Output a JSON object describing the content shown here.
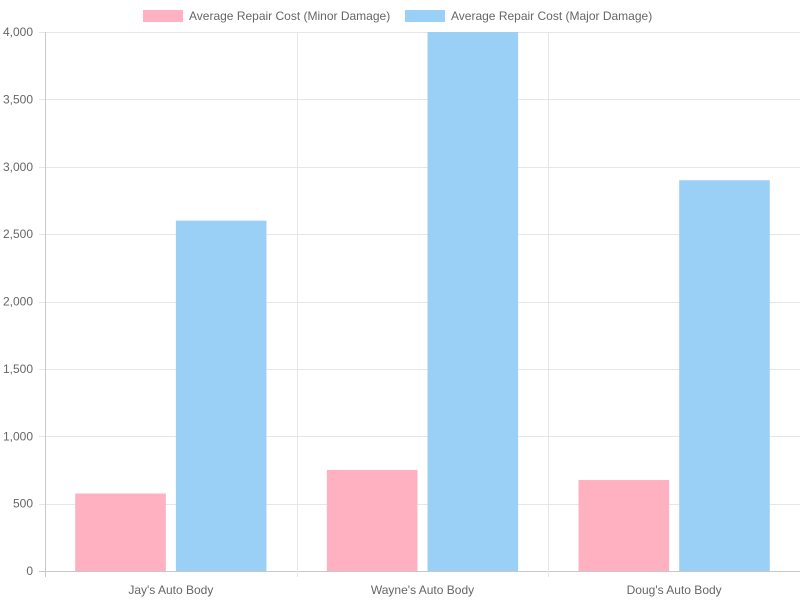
{
  "chart_data": {
    "type": "bar",
    "categories": [
      "Jay's Auto Body",
      "Wayne's Auto Body",
      "Doug's Auto Body"
    ],
    "series": [
      {
        "name": "Average Repair Cost (Minor Damage)",
        "values": [
          575,
          750,
          675
        ],
        "color": "#ff6384",
        "fill": "rgba(255,99,132,0.5)"
      },
      {
        "name": "Average Repair Cost (Major Damage)",
        "values": [
          2600,
          4000,
          2900
        ],
        "color": "#36a2eb",
        "fill": "rgba(54,162,235,0.5)"
      }
    ],
    "ylim": [
      0,
      4000
    ],
    "yticks": [
      "0",
      "500",
      "1,000",
      "1,500",
      "2,000",
      "2,500",
      "3,000",
      "3,500",
      "4,000"
    ],
    "ytick_values": [
      0,
      500,
      1000,
      1500,
      2000,
      2500,
      3000,
      3500,
      4000
    ],
    "grid": true,
    "legend_position": "top"
  }
}
